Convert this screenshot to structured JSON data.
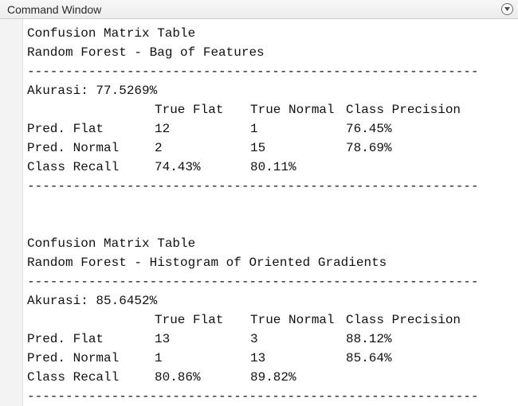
{
  "window": {
    "title": "Command Window",
    "menu_icon": "chevron-down-circle-icon",
    "colors": {
      "text": "#111111",
      "background": "#ffffff",
      "titlebar": "#ececec"
    }
  },
  "blocks": [
    {
      "heading": "Confusion Matrix Table",
      "subtitle": "Random Forest - Bag of Features",
      "separator": "-----------------------------------------------------------",
      "accuracy": "Akurasi: 77.5269%",
      "header": [
        "",
        "True Flat",
        "True Normal",
        "Class Precision"
      ],
      "rows": [
        [
          "Pred. Flat",
          "12",
          "1",
          "76.45%"
        ],
        [
          "Pred. Normal",
          "2",
          "15",
          "78.69%"
        ],
        [
          "Class Recall",
          "74.43%",
          "80.11%",
          ""
        ]
      ]
    },
    {
      "heading": "Confusion Matrix Table",
      "subtitle": "Random Forest - Histogram of Oriented Gradients",
      "separator": "-----------------------------------------------------------",
      "accuracy": "Akurasi: 85.6452%",
      "header": [
        "",
        "True Flat",
        "True Normal",
        "Class Precision"
      ],
      "rows": [
        [
          "Pred. Flat",
          "13",
          "3",
          "88.12%"
        ],
        [
          "Pred. Normal",
          "1",
          "13",
          "85.64%"
        ],
        [
          "Class Recall",
          "80.86%",
          "89.82%",
          ""
        ]
      ]
    }
  ]
}
